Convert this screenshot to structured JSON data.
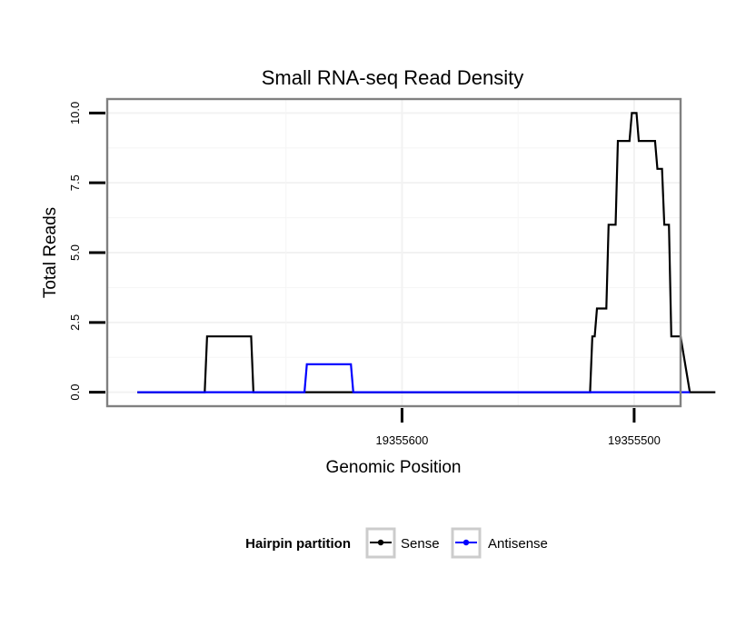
{
  "chart_data": {
    "type": "line",
    "title": "Small RNA-seq Read Density",
    "xlabel": "Genomic Position",
    "ylabel": "Total Reads",
    "x_reversed": true,
    "xlim": [
      19355727,
      19355480
    ],
    "ylim": [
      -0.5,
      10.5
    ],
    "x_ticks": [
      19355600,
      19355500
    ],
    "x_tick_labels": [
      "19355600",
      "19355500"
    ],
    "y_ticks": [
      0,
      2.5,
      5,
      7.5,
      10
    ],
    "y_tick_labels": [
      "0.0",
      "2.5",
      "5.0",
      "7.5",
      "10.0"
    ],
    "grid": true,
    "legend": {
      "title": "Hairpin partition",
      "position": "bottom",
      "entries": [
        "Sense",
        "Antisense"
      ]
    },
    "series": [
      {
        "name": "Sense",
        "color": "#000000",
        "x": [
          19355714,
          19355685,
          19355684,
          19355665,
          19355664,
          19355519,
          19355518,
          19355517,
          19355516,
          19355512,
          19355511,
          19355508,
          19355507,
          19355502,
          19355501,
          19355499,
          19355498,
          19355491,
          19355490,
          19355488,
          19355487,
          19355485,
          19355484,
          19355480,
          19355476,
          19355465
        ],
        "y": [
          0,
          0,
          2,
          2,
          0,
          0,
          2,
          2,
          3,
          3,
          6,
          6,
          9,
          9,
          10,
          10,
          9,
          9,
          8,
          8,
          6,
          6,
          2,
          2,
          0,
          0
        ]
      },
      {
        "name": "Antisense",
        "color": "#0000ff",
        "x": [
          19355714,
          19355642,
          19355641,
          19355622,
          19355621,
          19355519,
          19355519,
          19355476
        ],
        "y": [
          0,
          0,
          1,
          1,
          0,
          0,
          0,
          0
        ]
      }
    ]
  }
}
